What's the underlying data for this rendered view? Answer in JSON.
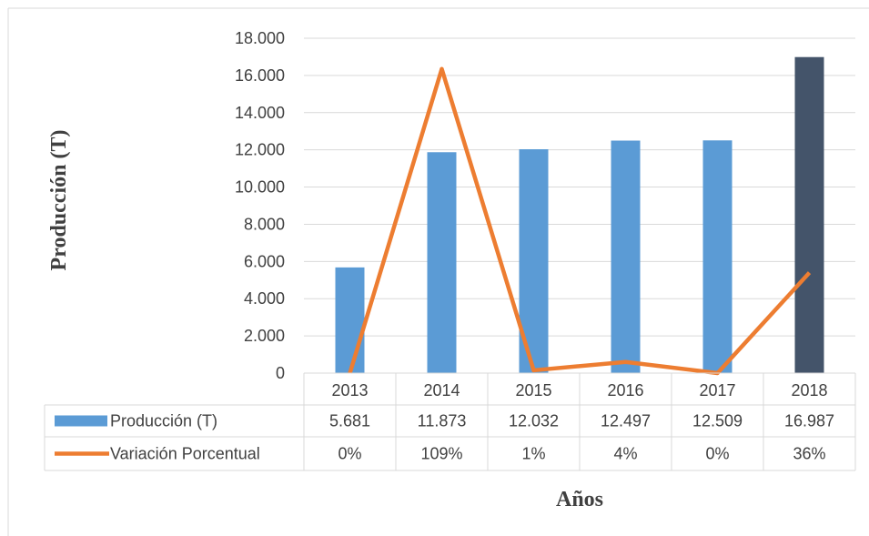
{
  "chart_data": {
    "type": "bar",
    "categories": [
      "2013",
      "2014",
      "2015",
      "2016",
      "2017",
      "2018"
    ],
    "series": [
      {
        "name": "Producción (T)",
        "kind": "bar",
        "values": [
          5681,
          11873,
          12032,
          12497,
          12509,
          16987
        ],
        "labels": [
          "5.681",
          "11.873",
          "12.032",
          "12.497",
          "12.509",
          "16.987"
        ],
        "color": "#5B9BD5",
        "highlight_color": "#44546A",
        "highlight_index": 5
      },
      {
        "name": "Variación Porcentual",
        "kind": "line",
        "values": [
          0,
          109,
          1,
          4,
          0,
          36
        ],
        "labels": [
          "0%",
          "109%",
          "1%",
          "4%",
          "0%",
          "36%"
        ],
        "color": "#ED7D31"
      }
    ],
    "ylabel": "Producción (T)",
    "xlabel": "Años",
    "ylim": [
      0,
      18000
    ],
    "yticks": [
      "0",
      "2.000",
      "4.000",
      "6.000",
      "8.000",
      "10.000",
      "12.000",
      "14.000",
      "16.000",
      "18.000"
    ],
    "ytick_values": [
      0,
      2000,
      4000,
      6000,
      8000,
      10000,
      12000,
      14000,
      16000,
      18000
    ],
    "y2lim": [
      0,
      120
    ],
    "grid": true,
    "legend": "data-table"
  }
}
